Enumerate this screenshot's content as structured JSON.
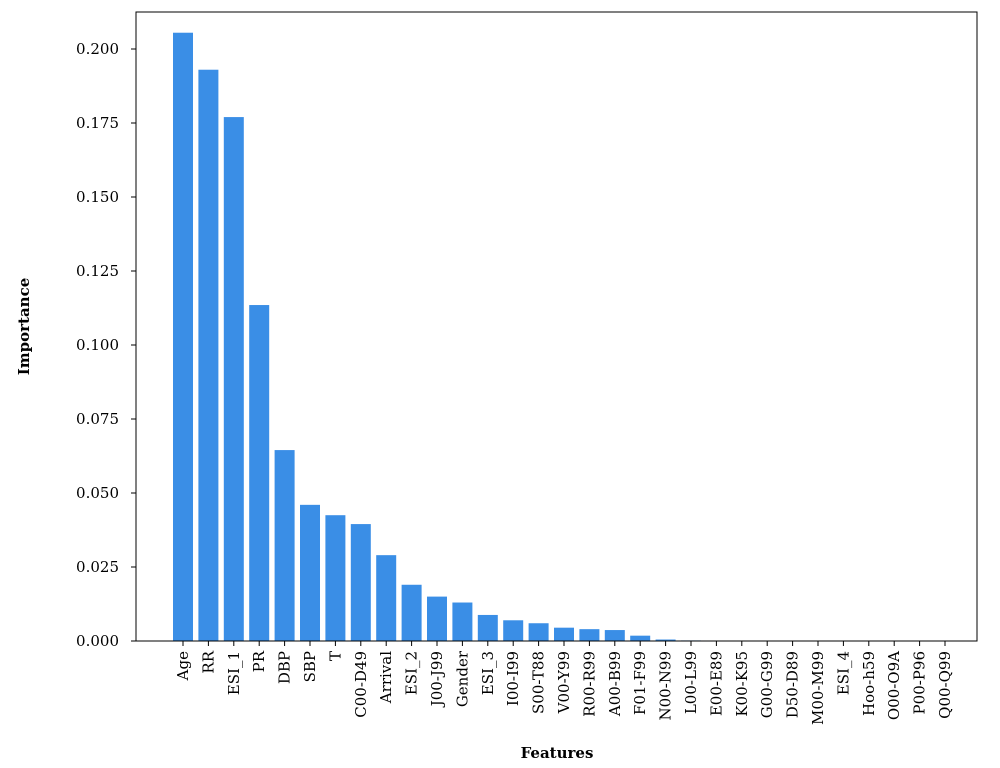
{
  "chart_data": {
    "type": "bar",
    "title": "",
    "xlabel": "Features",
    "ylabel": "Importance",
    "ylim": [
      0,
      0.2125
    ],
    "yticks": [
      "0.000",
      "0.025",
      "0.050",
      "0.075",
      "0.100",
      "0.125",
      "0.150",
      "0.175",
      "0.200"
    ],
    "ytick_values": [
      0,
      0.025,
      0.05,
      0.075,
      0.1,
      0.125,
      0.15,
      0.175,
      0.2
    ],
    "grid": false,
    "colors": {
      "bar": "#3a8ee6"
    },
    "categories": [
      "Age",
      "RR",
      "ESI_1",
      "PR",
      "DBP",
      "SBP",
      "T",
      "C00-D49",
      "Arrival",
      "ESI_2",
      "J00-J99",
      "Gender",
      "ESI_3",
      "I00-I99",
      "S00-T88",
      "V00-Y99",
      "R00-R99",
      "A00-B99",
      "F01-F99",
      "N00-N99",
      "L00-L99",
      "E00-E89",
      "K00-K95",
      "G00-G99",
      "D50-D89",
      "M00-M99",
      "ESI_4",
      "Hoo-h59",
      "O00-O9A",
      "P00-P96",
      "Q00-Q99"
    ],
    "values": [
      0.2055,
      0.193,
      0.177,
      0.1135,
      0.0645,
      0.046,
      0.0425,
      0.0395,
      0.029,
      0.019,
      0.015,
      0.013,
      0.0088,
      0.007,
      0.006,
      0.0045,
      0.004,
      0.0037,
      0.0018,
      0.0005,
      0.0002,
      0.0001,
      0.0001,
      0.0001,
      0.0001,
      0.0001,
      0.0001,
      0.0001,
      0.0001,
      0.0001,
      0.0001
    ]
  }
}
